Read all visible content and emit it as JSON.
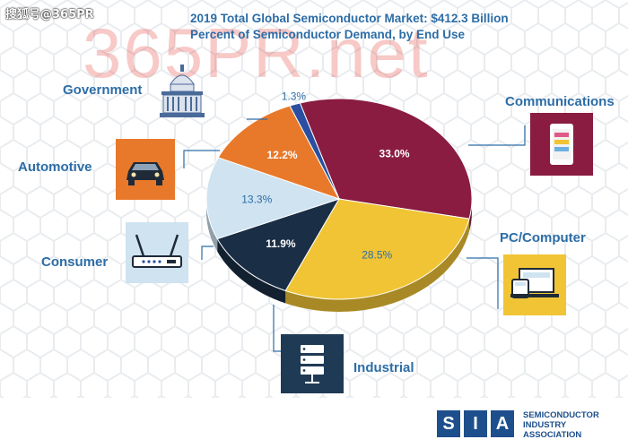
{
  "source_tag": "搜狐号@365PR",
  "watermark": "365PR.net",
  "chart_data": {
    "type": "pie",
    "title": "2019 Total Global Semiconductor Market: $412.3 Billion",
    "subtitle": "Percent of Semiconductor Demand, by End Use",
    "slices": [
      {
        "name": "Communications",
        "value": 33.0,
        "label": "33.0%",
        "color": "#8a1c41",
        "label_color": "#ffffff"
      },
      {
        "name": "PC/Computer",
        "value": 28.5,
        "label": "28.5%",
        "color": "#f0c435",
        "label_color": "#2d6da6"
      },
      {
        "name": "Industrial",
        "value": 11.9,
        "label": "11.9%",
        "color": "#1a2e45",
        "label_color": "#ffffff"
      },
      {
        "name": "Consumer",
        "value": 13.3,
        "label": "13.3%",
        "color": "#cfe3f1",
        "label_color": "#2d6da6"
      },
      {
        "name": "Automotive",
        "value": 12.2,
        "label": "12.2%",
        "color": "#e8792a",
        "label_color": "#ffffff"
      },
      {
        "name": "Government",
        "value": 1.3,
        "label": "1.3%",
        "color": "#2a4ea0",
        "label_color": "#2d6da6"
      }
    ],
    "legend": "labels around pie with icons"
  },
  "categories": {
    "government": "Government",
    "automotive": "Automotive",
    "consumer": "Consumer",
    "communications": "Communications",
    "pc_computer": "PC/Computer",
    "industrial": "Industrial"
  },
  "logo": {
    "letters": [
      "S",
      "I",
      "A"
    ],
    "line1": "SEMICONDUCTOR",
    "line2": "INDUSTRY",
    "line3": "ASSOCIATION"
  }
}
